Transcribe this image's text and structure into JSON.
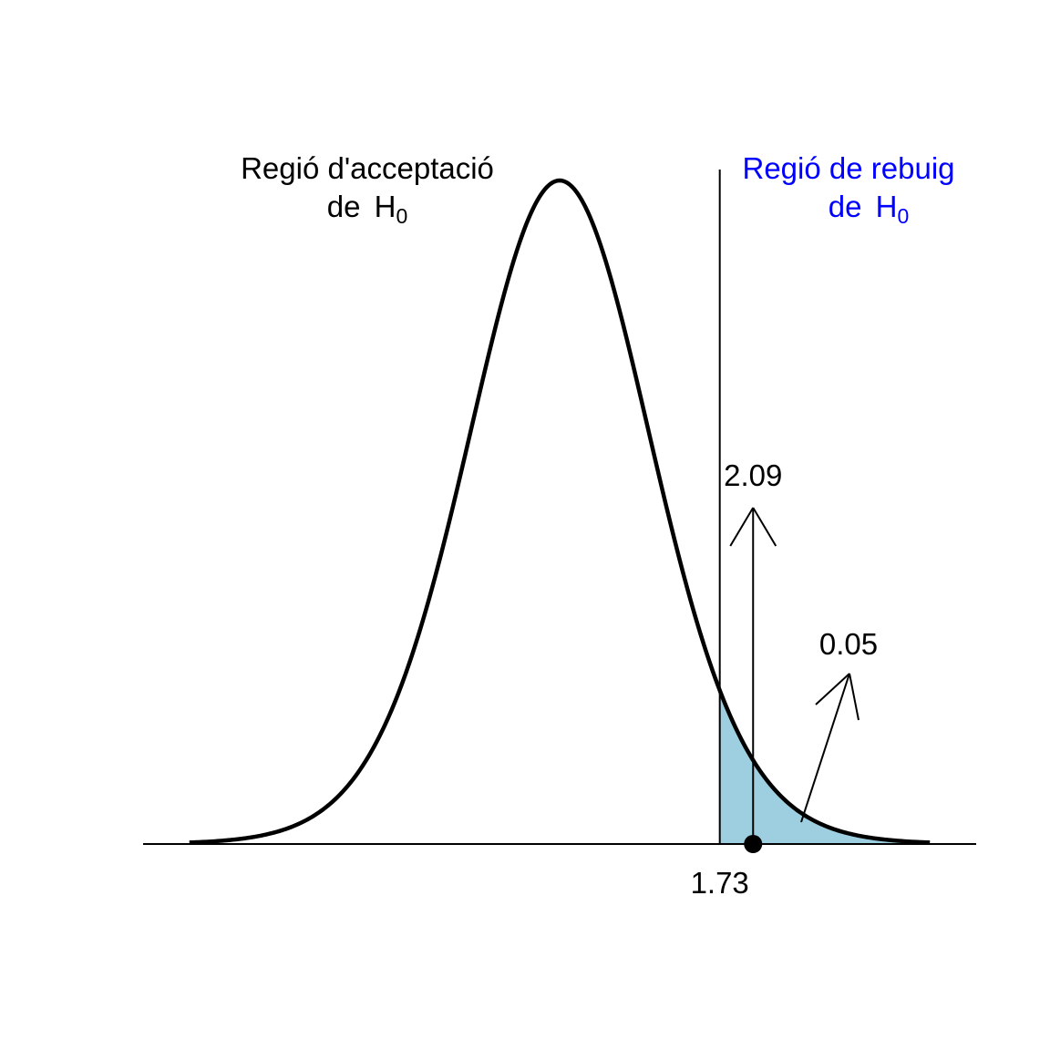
{
  "chart_data": {
    "type": "area",
    "distribution": "Student t",
    "degrees_of_freedom": 19,
    "xlim": [
      -4.5,
      4.5
    ],
    "grid": false,
    "critical_value": 1.73,
    "critical_label": "1.73",
    "statistic_value": 2.09,
    "statistic_label": "2.09",
    "alpha": 0.05,
    "alpha_label": "0.05",
    "acceptance_region": {
      "line1": "Regió d'acceptació",
      "line2_prefix": "de",
      "symbol": "H",
      "subscript": "0"
    },
    "rejection_region": {
      "line1": "Regió de rebuig",
      "line2_prefix": "de",
      "symbol": "H",
      "subscript": "0"
    },
    "colors": {
      "curve": "#000000",
      "shade": "#9ecfe0",
      "rejection_text": "#0000ff",
      "text": "#000000"
    }
  }
}
